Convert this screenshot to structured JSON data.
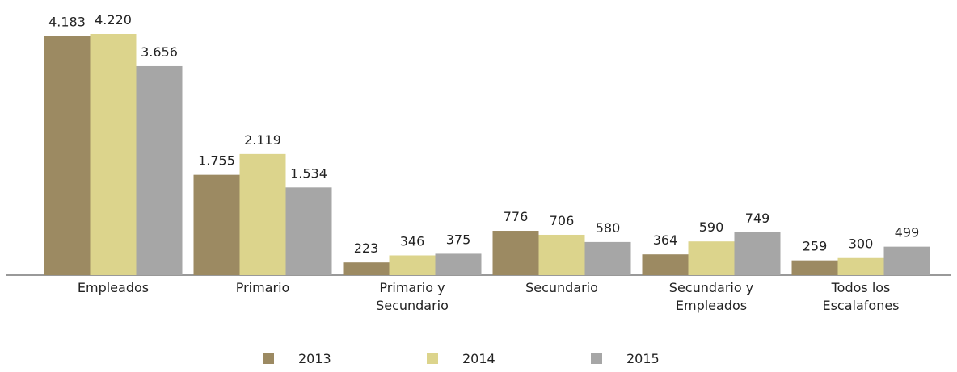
{
  "chart_data": {
    "type": "bar",
    "categories": [
      "Empleados",
      "Primario",
      "Primario y Secundario",
      "Secundario",
      "Secundario y Empleados",
      "Todos los Escalafones"
    ],
    "series": [
      {
        "name": "2013",
        "color": "#9c8a62",
        "values": [
          4183,
          1755,
          223,
          776,
          364,
          259
        ],
        "value_labels": [
          "4.183",
          "1.755",
          "223",
          "776",
          "364",
          "259"
        ]
      },
      {
        "name": "2014",
        "color": "#dcd48c",
        "values": [
          4220,
          2119,
          346,
          706,
          590,
          300
        ],
        "value_labels": [
          "4.220",
          "2.119",
          "346",
          "706",
          "590",
          "300"
        ]
      },
      {
        "name": "2015",
        "color": "#a6a6a6",
        "values": [
          3656,
          1534,
          375,
          580,
          749,
          499
        ],
        "value_labels": [
          "3.656",
          "1.534",
          "375",
          "580",
          "749",
          "499"
        ]
      }
    ],
    "legend": "bottom"
  }
}
